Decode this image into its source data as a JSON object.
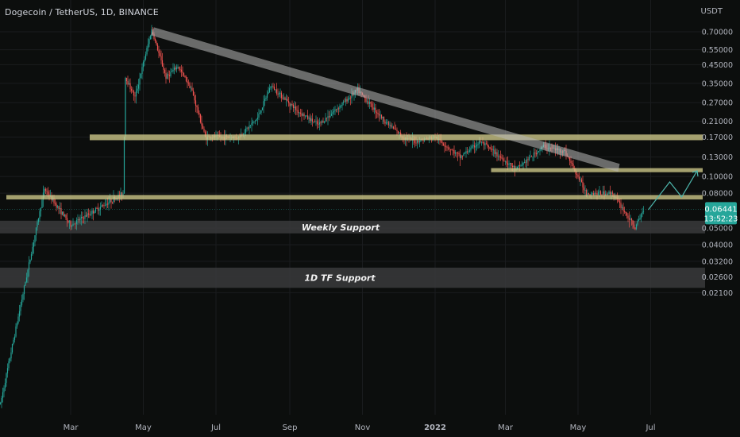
{
  "header": {
    "title": "Dogecoin / TetherUS, 1D, BINANCE",
    "unit": "USDT"
  },
  "colors": {
    "background": "#0c0e0d",
    "up": "#26a69a",
    "down": "#ef5350",
    "zone": "#cfc98a",
    "support_box": "#3a3a3c",
    "trendline": "#b8b8b8",
    "arrow": "#4db6ac",
    "price_label_bg": "#26a69a"
  },
  "chart_data": {
    "type": "candlestick",
    "scale": "log",
    "x": {
      "tick_labels": [
        "Mar",
        "May",
        "Jul",
        "Sep",
        "Nov",
        "2022",
        "Mar",
        "May",
        "Jul"
      ]
    },
    "y": {
      "ylim": [
        0.021,
        0.82
      ],
      "tick_values": [
        0.7,
        0.55,
        0.45,
        0.35,
        0.27,
        0.21,
        0.17,
        0.13,
        0.1,
        0.08,
        0.05,
        0.04,
        0.032,
        0.026,
        0.021
      ],
      "tick_labels": [
        "0.70000",
        "0.55000",
        "0.45000",
        "0.35000",
        "0.27000",
        "0.21000",
        "0.17000",
        "0.13000",
        "0.10000",
        "0.08000",
        "0.05000",
        "0.04000",
        "0.03200",
        "0.02600",
        "0.02100"
      ]
    },
    "current_price": {
      "value": 0.06441,
      "label": "0.06441",
      "countdown": "13:52:23"
    },
    "resistance_zones": [
      {
        "from_price": 0.163,
        "to_price": 0.176
      },
      {
        "from_price": 0.106,
        "to_price": 0.112
      },
      {
        "from_price": 0.0735,
        "to_price": 0.078
      }
    ],
    "support_boxes": [
      {
        "label": "Weekly Support",
        "from_price": 0.0466,
        "to_price": 0.0552
      },
      {
        "label": "1D TF Support",
        "from_price": 0.0224,
        "to_price": 0.0294
      }
    ],
    "trendline": {
      "from": [
        "May 8",
        0.72
      ],
      "to": [
        "Jul 1",
        0.11
      ]
    },
    "projection": [
      0.064,
      0.093,
      0.076,
      0.108
    ],
    "key_prices": [
      {
        "date": "Jan 1",
        "price": 0.0047
      },
      {
        "date": "Feb 7",
        "price": 0.085
      },
      {
        "date": "Mar 1",
        "price": 0.052
      },
      {
        "date": "Apr 14",
        "price": 0.08
      },
      {
        "date": "Apr 16",
        "price": 0.38
      },
      {
        "date": "Apr 24",
        "price": 0.29
      },
      {
        "date": "May 8",
        "price": 0.72
      },
      {
        "date": "May 20",
        "price": 0.38
      },
      {
        "date": "May 30",
        "price": 0.44
      },
      {
        "date": "Jun 10",
        "price": 0.33
      },
      {
        "date": "Jun 22",
        "price": 0.17
      },
      {
        "date": "Jul 20",
        "price": 0.17
      },
      {
        "date": "Aug 5",
        "price": 0.22
      },
      {
        "date": "Aug 16",
        "price": 0.34
      },
      {
        "date": "Sep 8",
        "price": 0.24
      },
      {
        "date": "Sep 25",
        "price": 0.2
      },
      {
        "date": "Oct 28",
        "price": 0.32
      },
      {
        "date": "Nov 20",
        "price": 0.21
      },
      {
        "date": "Dec 5",
        "price": 0.17
      },
      {
        "date": "Dec 15",
        "price": 0.16
      },
      {
        "date": "Jan 1",
        "price": 0.17
      },
      {
        "date": "Jan 22",
        "price": 0.13
      },
      {
        "date": "Feb 8",
        "price": 0.16
      },
      {
        "date": "Mar 10",
        "price": 0.11
      },
      {
        "date": "Apr 2",
        "price": 0.15
      },
      {
        "date": "Apr 20",
        "price": 0.14
      },
      {
        "date": "May 8",
        "price": 0.08
      },
      {
        "date": "May 30",
        "price": 0.08
      },
      {
        "date": "Jun 18",
        "price": 0.05
      },
      {
        "date": "Jun 25",
        "price": 0.0644
      }
    ]
  }
}
